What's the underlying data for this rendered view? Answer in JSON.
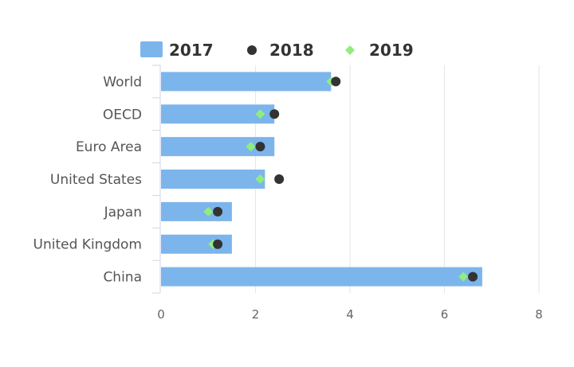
{
  "chart_data": {
    "type": "bar",
    "categories": [
      "World",
      "OECD",
      "Euro Area",
      "United States",
      "Japan",
      "United Kingdom",
      "China"
    ],
    "series": [
      {
        "name": "2017",
        "kind": "bar",
        "values": [
          3.6,
          2.4,
          2.4,
          2.2,
          1.5,
          1.5,
          6.8
        ],
        "color": "#7cb5ec"
      },
      {
        "name": "2018",
        "kind": "circle",
        "values": [
          3.7,
          2.4,
          2.1,
          2.5,
          1.2,
          1.2,
          6.6
        ],
        "color": "#333333"
      },
      {
        "name": "2019",
        "kind": "diamond",
        "values": [
          3.6,
          2.1,
          1.9,
          2.1,
          1.0,
          1.1,
          6.4
        ],
        "color": "#90ed7d"
      }
    ],
    "xlim": [
      0,
      8
    ],
    "ticks": [
      "0",
      "2",
      "4",
      "6",
      "8"
    ],
    "orientation": "horizontal",
    "grid": "vertical",
    "legend_position": "top"
  }
}
